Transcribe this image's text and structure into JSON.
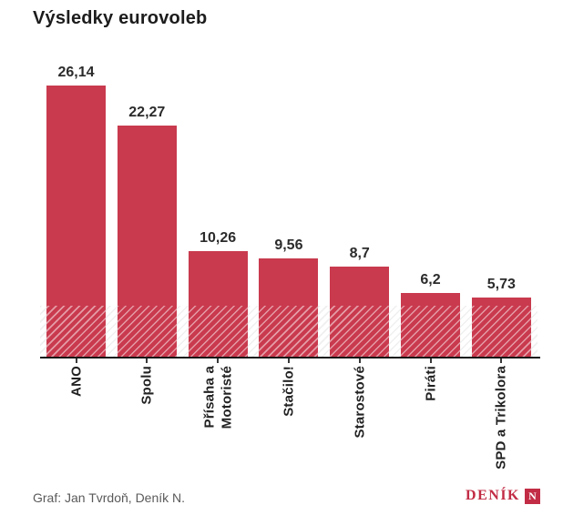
{
  "title": "Výsledky eurovoleb",
  "source": "Graf: Jan Tvrdoň, Deník N.",
  "logo": {
    "text": "DENÍK",
    "square_letter": "N"
  },
  "colors": {
    "bar": "#c93a4e",
    "logo_red": "#c22c45",
    "title_text": "#1c1c1c",
    "axis": "#161616",
    "source_text": "#5a5a5a"
  },
  "chart_data": {
    "type": "bar",
    "title": "Výsledky eurovoleb",
    "categories": [
      "ANO",
      "Spolu",
      "Přísaha a\nMotoristé",
      "Stačilo!",
      "Starostové",
      "Piráti",
      "SPD a Trikolora"
    ],
    "values": [
      26.14,
      22.27,
      10.26,
      9.56,
      8.7,
      6.2,
      5.73
    ],
    "value_labels": [
      "26,14",
      "22,27",
      "10,26",
      "9,56",
      "8,7",
      "6,2",
      "5,73"
    ],
    "xlabel": "",
    "ylabel": "",
    "ylim": [
      0,
      28
    ],
    "grid": false,
    "legend": false,
    "bar_color": "#c93a4e",
    "threshold_band": {
      "from": 0,
      "to": 5,
      "style": "hatched"
    },
    "x_label_rotation": -90
  }
}
